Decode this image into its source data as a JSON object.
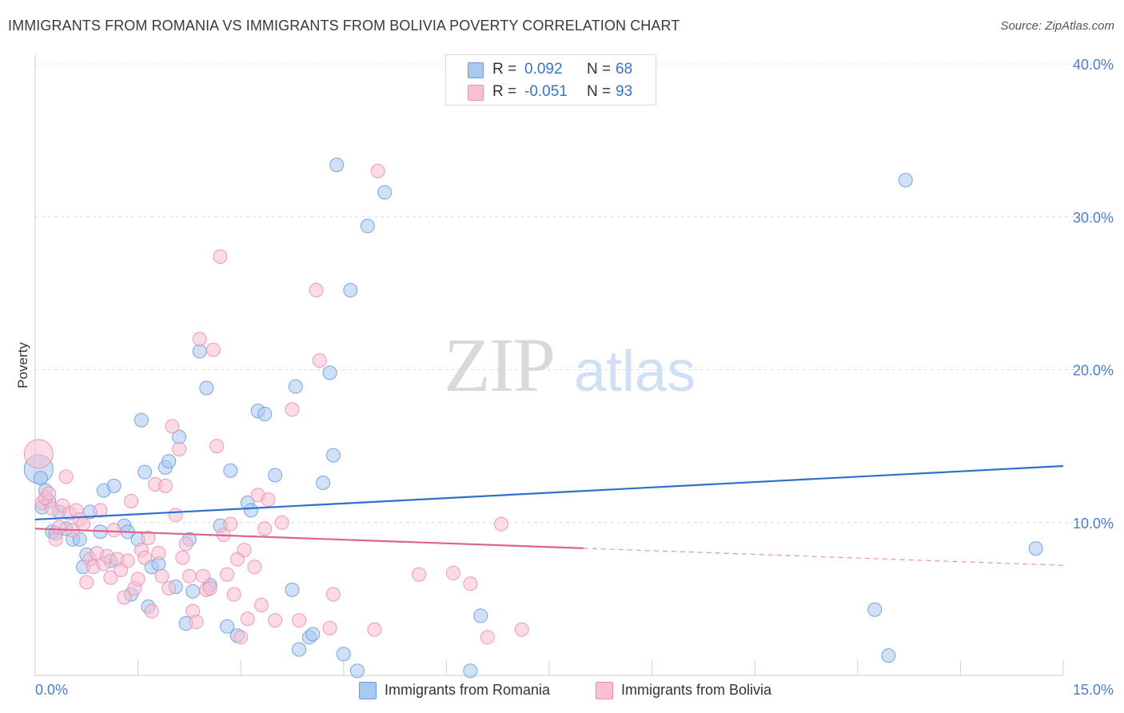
{
  "title": "IMMIGRANTS FROM ROMANIA VS IMMIGRANTS FROM BOLIVIA POVERTY CORRELATION CHART",
  "source": "Source: ZipAtlas.com",
  "watermark": {
    "zip": "ZIP",
    "atlas": "atlas"
  },
  "legend_stats": [
    {
      "r_label": "R =",
      "r_value": "0.092",
      "n_label": "N =",
      "n_value": "68",
      "color": "#a9c8f0",
      "border": "#6a9de0"
    },
    {
      "r_label": "R =",
      "r_value": "-0.051",
      "n_label": "N =",
      "n_value": "93",
      "color": "#f8c0d2",
      "border": "#ee8fb0"
    }
  ],
  "chart_data": {
    "type": "scatter",
    "title": "IMMIGRANTS FROM ROMANIA VS IMMIGRANTS FROM BOLIVIA POVERTY CORRELATION CHART",
    "xlabel": "",
    "ylabel": "Poverty",
    "xlim": [
      0,
      15
    ],
    "ylim": [
      0,
      40
    ],
    "x_tick_labels": [
      "0.0%",
      "15.0%"
    ],
    "y_ticks": [
      10,
      20,
      30,
      40
    ],
    "y_tick_labels": [
      "10.0%",
      "20.0%",
      "30.0%",
      "40.0%"
    ],
    "grid": true,
    "legend_position": "bottom",
    "series": [
      {
        "name": "Immigrants from Romania",
        "color": "#6a9de0",
        "fill": "#a9c8f0",
        "trend": {
          "x": [
            0,
            15
          ],
          "y": [
            10.2,
            13.7
          ],
          "color": "#2f6fce",
          "dashed_from": null
        },
        "points": [
          [
            0.05,
            13.5
          ],
          [
            0.08,
            12.9
          ],
          [
            0.15,
            12.1
          ],
          [
            0.1,
            11.0
          ],
          [
            0.2,
            11.4
          ],
          [
            0.25,
            9.4
          ],
          [
            0.3,
            9.3
          ],
          [
            0.35,
            10.7
          ],
          [
            0.45,
            9.6
          ],
          [
            0.55,
            8.9
          ],
          [
            0.65,
            8.9
          ],
          [
            0.75,
            7.9
          ],
          [
            0.7,
            7.1
          ],
          [
            0.8,
            10.7
          ],
          [
            0.95,
            9.4
          ],
          [
            1.0,
            12.1
          ],
          [
            1.1,
            7.5
          ],
          [
            1.15,
            12.4
          ],
          [
            1.3,
            9.8
          ],
          [
            1.35,
            9.4
          ],
          [
            1.4,
            5.3
          ],
          [
            1.5,
            8.9
          ],
          [
            1.55,
            16.7
          ],
          [
            1.6,
            13.3
          ],
          [
            1.65,
            4.5
          ],
          [
            1.7,
            7.1
          ],
          [
            1.8,
            7.3
          ],
          [
            1.9,
            13.6
          ],
          [
            1.95,
            14.0
          ],
          [
            2.05,
            5.8
          ],
          [
            2.1,
            15.6
          ],
          [
            2.2,
            3.4
          ],
          [
            2.25,
            8.9
          ],
          [
            2.3,
            5.5
          ],
          [
            2.4,
            21.2
          ],
          [
            2.5,
            18.8
          ],
          [
            2.55,
            5.9
          ],
          [
            2.7,
            9.8
          ],
          [
            2.8,
            3.2
          ],
          [
            2.85,
            13.4
          ],
          [
            2.95,
            2.6
          ],
          [
            3.1,
            11.3
          ],
          [
            3.15,
            10.8
          ],
          [
            3.25,
            17.3
          ],
          [
            3.35,
            17.1
          ],
          [
            3.5,
            13.1
          ],
          [
            3.75,
            5.6
          ],
          [
            3.8,
            18.9
          ],
          [
            3.85,
            1.7
          ],
          [
            4.0,
            2.5
          ],
          [
            4.05,
            2.7
          ],
          [
            4.2,
            12.6
          ],
          [
            4.3,
            19.8
          ],
          [
            4.35,
            14.4
          ],
          [
            4.4,
            33.4
          ],
          [
            4.5,
            1.4
          ],
          [
            4.6,
            25.2
          ],
          [
            4.7,
            0.3
          ],
          [
            4.85,
            29.4
          ],
          [
            5.1,
            31.6
          ],
          [
            6.35,
            0.3
          ],
          [
            6.5,
            3.9
          ],
          [
            12.25,
            4.3
          ],
          [
            12.45,
            1.3
          ],
          [
            12.7,
            32.4
          ],
          [
            14.6,
            8.3
          ]
        ]
      },
      {
        "name": "Immigrants from Bolivia",
        "color": "#ee8fb0",
        "fill": "#f8c0d2",
        "trend": {
          "x": [
            0,
            15
          ],
          "y": [
            9.6,
            7.2
          ],
          "color": "#e0628f",
          "dashed_from": 8.0
        },
        "points": [
          [
            0.05,
            14.5
          ],
          [
            0.1,
            11.3
          ],
          [
            0.15,
            11.6
          ],
          [
            0.2,
            11.9
          ],
          [
            0.25,
            10.9
          ],
          [
            0.3,
            8.9
          ],
          [
            0.35,
            9.7
          ],
          [
            0.4,
            11.1
          ],
          [
            0.45,
            13.0
          ],
          [
            0.5,
            10.6
          ],
          [
            0.55,
            9.5
          ],
          [
            0.6,
            10.8
          ],
          [
            0.65,
            10.2
          ],
          [
            0.7,
            9.9
          ],
          [
            0.75,
            6.1
          ],
          [
            0.8,
            7.6
          ],
          [
            0.85,
            7.1
          ],
          [
            0.9,
            8.0
          ],
          [
            0.95,
            10.8
          ],
          [
            1.0,
            7.3
          ],
          [
            1.05,
            7.8
          ],
          [
            1.1,
            6.4
          ],
          [
            1.15,
            9.5
          ],
          [
            1.2,
            7.6
          ],
          [
            1.25,
            6.9
          ],
          [
            1.3,
            5.1
          ],
          [
            1.35,
            7.5
          ],
          [
            1.4,
            11.4
          ],
          [
            1.45,
            5.7
          ],
          [
            1.5,
            6.3
          ],
          [
            1.55,
            8.2
          ],
          [
            1.6,
            7.7
          ],
          [
            1.65,
            9.0
          ],
          [
            1.7,
            4.2
          ],
          [
            1.75,
            12.5
          ],
          [
            1.8,
            8.0
          ],
          [
            1.85,
            6.5
          ],
          [
            1.9,
            12.4
          ],
          [
            1.95,
            5.7
          ],
          [
            2.0,
            16.3
          ],
          [
            2.05,
            10.5
          ],
          [
            2.1,
            14.8
          ],
          [
            2.15,
            7.7
          ],
          [
            2.2,
            8.6
          ],
          [
            2.25,
            6.5
          ],
          [
            2.3,
            4.2
          ],
          [
            2.35,
            3.5
          ],
          [
            2.4,
            22.0
          ],
          [
            2.45,
            6.5
          ],
          [
            2.5,
            5.6
          ],
          [
            2.55,
            5.7
          ],
          [
            2.6,
            21.3
          ],
          [
            2.65,
            15.0
          ],
          [
            2.7,
            27.4
          ],
          [
            2.75,
            9.2
          ],
          [
            2.8,
            6.6
          ],
          [
            2.85,
            9.9
          ],
          [
            2.9,
            5.3
          ],
          [
            2.95,
            7.6
          ],
          [
            3.0,
            2.5
          ],
          [
            3.05,
            8.2
          ],
          [
            3.1,
            3.7
          ],
          [
            3.2,
            7.1
          ],
          [
            3.25,
            11.8
          ],
          [
            3.3,
            4.6
          ],
          [
            3.35,
            9.6
          ],
          [
            3.4,
            11.5
          ],
          [
            3.5,
            3.6
          ],
          [
            3.6,
            10.0
          ],
          [
            3.75,
            17.4
          ],
          [
            3.85,
            3.6
          ],
          [
            4.1,
            25.2
          ],
          [
            4.15,
            20.6
          ],
          [
            4.3,
            3.1
          ],
          [
            4.35,
            5.3
          ],
          [
            4.95,
            3.0
          ],
          [
            5.0,
            33.0
          ],
          [
            5.6,
            6.6
          ],
          [
            6.1,
            6.7
          ],
          [
            6.35,
            6.0
          ],
          [
            6.6,
            2.5
          ],
          [
            6.8,
            9.9
          ],
          [
            7.1,
            3.0
          ]
        ]
      }
    ]
  }
}
